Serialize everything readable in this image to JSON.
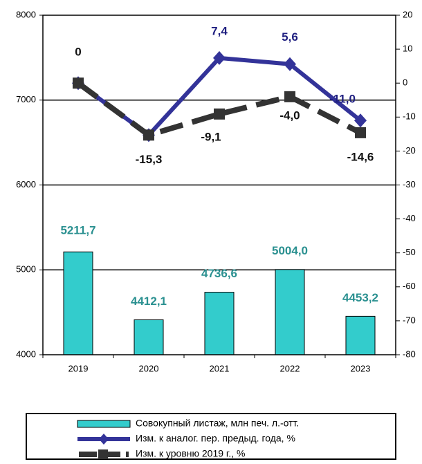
{
  "chart_data": {
    "type": "bar",
    "categories": [
      "2019",
      "2020",
      "2021",
      "2022",
      "2023"
    ],
    "ylim": [
      4000,
      8000
    ],
    "yticks": [
      4000,
      5000,
      6000,
      7000,
      8000
    ],
    "y2lim": [
      -80,
      20
    ],
    "y2ticks": [
      -80,
      -70,
      -60,
      -50,
      -40,
      -30,
      -20,
      -10,
      0,
      10,
      20
    ],
    "grid": true,
    "legend": "bottom",
    "series": [
      {
        "name": "Совокупный листаж, млн печ. л.-отт.",
        "type": "bar",
        "color": "#33cccc",
        "label_color": "#2a9090",
        "values": [
          5211.7,
          4412.1,
          4736.6,
          5004.0,
          4453.2
        ],
        "value_labels": [
          "5211,7",
          "4412,1",
          "4736,6",
          "5004,0",
          "4453,2"
        ]
      },
      {
        "name": "Изм. к аналог. пер. предыд. года, %",
        "type": "line",
        "axis": "y2",
        "color": "#333399",
        "label_color": "#1f1f80",
        "values": [
          0,
          -15.3,
          7.4,
          5.6,
          -11.0
        ],
        "value_labels": [
          null,
          null,
          "7,4",
          "5,6",
          "-11,0"
        ]
      },
      {
        "name": "Изм. к уровню 2019 г., %",
        "type": "line",
        "axis": "y2",
        "color": "#333333",
        "label_color": "#111111",
        "values": [
          0,
          -15.3,
          -9.1,
          -4.0,
          -14.6
        ],
        "value_labels": [
          "0",
          "-15,3",
          "-9,1",
          "-4,0",
          "-14,6"
        ]
      }
    ]
  }
}
